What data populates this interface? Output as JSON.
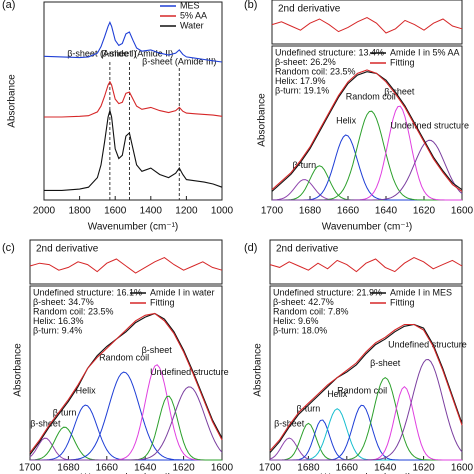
{
  "chart_data": [
    {
      "type": "line",
      "panel": "(a)",
      "xlabel": "Wavenumber (cm⁻¹)",
      "ylabel": "Absorbance",
      "xlim": [
        2000,
        1000
      ],
      "xticks": [
        2000,
        1800,
        1600,
        1400,
        1200,
        1000
      ],
      "ylim": [
        0,
        3.1
      ],
      "x": [
        2000,
        1900,
        1800,
        1750,
        1700,
        1680,
        1660,
        1640,
        1630,
        1620,
        1600,
        1580,
        1560,
        1540,
        1520,
        1500,
        1480,
        1450,
        1400,
        1350,
        1300,
        1260,
        1240,
        1220,
        1200,
        1150,
        1100,
        1050,
        1000
      ],
      "series": [
        {
          "name": "MES",
          "color": "#1f3fd6",
          "values": [
            2.25,
            2.24,
            2.23,
            2.24,
            2.3,
            2.4,
            2.55,
            2.72,
            2.78,
            2.72,
            2.5,
            2.42,
            2.45,
            2.6,
            2.63,
            2.5,
            2.38,
            2.33,
            2.35,
            2.3,
            2.27,
            2.3,
            2.35,
            2.28,
            2.24,
            2.22,
            2.2,
            2.18,
            2.16
          ]
        },
        {
          "name": "5% AA",
          "color": "#d62728",
          "values": [
            1.3,
            1.3,
            1.31,
            1.32,
            1.38,
            1.47,
            1.62,
            1.8,
            1.85,
            1.8,
            1.58,
            1.51,
            1.53,
            1.67,
            1.69,
            1.58,
            1.47,
            1.42,
            1.45,
            1.4,
            1.37,
            1.4,
            1.45,
            1.39,
            1.36,
            1.35,
            1.34,
            1.33,
            1.31
          ]
        },
        {
          "name": "Water",
          "color": "#111111",
          "values": [
            0.15,
            0.15,
            0.17,
            0.2,
            0.35,
            0.55,
            0.9,
            1.3,
            1.4,
            1.3,
            0.8,
            0.65,
            0.7,
            1.0,
            1.05,
            0.8,
            0.55,
            0.45,
            0.5,
            0.4,
            0.35,
            0.42,
            0.5,
            0.4,
            0.32,
            0.3,
            0.28,
            0.25,
            0.2
          ]
        }
      ],
      "annotations": [
        {
          "text": "β-sheet (Amide I)",
          "x": 1630
        },
        {
          "text": "β-sheet (Amide II)",
          "x": 1520
        },
        {
          "text": "β-sheet (Amide III)",
          "x": 1240
        }
      ]
    },
    {
      "type": "fit",
      "panel": "(b)",
      "xlabel": "Wavenumber (cm⁻¹)",
      "ylabel": "Absorbance",
      "xlim": [
        1700,
        1600
      ],
      "xticks": [
        1700,
        1680,
        1660,
        1640,
        1620,
        1600
      ],
      "ylim": [
        0,
        0.9
      ],
      "derivative": {
        "label": "2nd derivative",
        "color": "#d62728",
        "ylim": [
          -1,
          1
        ],
        "values": [
          0.1,
          0.3,
          0.0,
          -0.3,
          0.2,
          0.5,
          0.1,
          -0.4,
          -0.1,
          0.3,
          0.6,
          0.2,
          -0.5,
          -0.2,
          0.4,
          0.1,
          -0.3,
          0.2,
          0.5,
          0.0,
          -0.2
        ]
      },
      "composition": [
        "Undefined structure: 13.4%",
        "β-sheet: 26.2%",
        "Random coil: 23.5%",
        "Helix: 17.9%",
        "β-turn: 19.1%"
      ],
      "x": [
        1700,
        1695,
        1690,
        1685,
        1680,
        1675,
        1670,
        1665,
        1660,
        1655,
        1650,
        1645,
        1640,
        1635,
        1630,
        1625,
        1620,
        1615,
        1610,
        1605,
        1600
      ],
      "series": [
        {
          "name": "Amide I in 5% AA",
          "color": "#111111",
          "values": [
            0.05,
            0.1,
            0.15,
            0.22,
            0.3,
            0.4,
            0.5,
            0.6,
            0.68,
            0.73,
            0.75,
            0.74,
            0.7,
            0.63,
            0.55,
            0.45,
            0.35,
            0.25,
            0.17,
            0.1,
            0.06
          ]
        },
        {
          "name": "Fitting",
          "color": "#d62728",
          "values": [
            0.06,
            0.11,
            0.16,
            0.23,
            0.31,
            0.41,
            0.51,
            0.61,
            0.69,
            0.74,
            0.76,
            0.74,
            0.69,
            0.62,
            0.54,
            0.44,
            0.34,
            0.24,
            0.16,
            0.09,
            0.05
          ]
        }
      ],
      "peaks": [
        {
          "center": 1683,
          "height": 0.12,
          "width": 5,
          "color": "#8e44ad",
          "label": "β-turn"
        },
        {
          "center": 1675,
          "height": 0.2,
          "width": 5,
          "color": "#2ca02c"
        },
        {
          "center": 1661,
          "height": 0.38,
          "width": 6,
          "color": "#1f3fd6",
          "label": "Helix"
        },
        {
          "center": 1648,
          "height": 0.52,
          "width": 7,
          "color": "#2ca02c",
          "label": "Random coil"
        },
        {
          "center": 1633,
          "height": 0.55,
          "width": 6,
          "color": "#e040e0",
          "label": "β-sheet"
        },
        {
          "center": 1617,
          "height": 0.35,
          "width": 8,
          "color": "#7b3fa0",
          "label": "Undefined structure"
        }
      ]
    },
    {
      "type": "fit",
      "panel": "(c)",
      "xlabel": "Wavenumber (cm⁻¹)",
      "ylabel": "Absorbance",
      "xlim": [
        1700,
        1600
      ],
      "xticks": [
        1700,
        1680,
        1660,
        1640,
        1620,
        1600
      ],
      "ylim": [
        0,
        0.95
      ],
      "derivative": {
        "label": "2nd derivative",
        "color": "#d62728",
        "ylim": [
          -1,
          1
        ],
        "values": [
          0.0,
          0.2,
          0.1,
          -0.3,
          -0.1,
          0.3,
          0.1,
          -0.4,
          0.2,
          0.5,
          0.0,
          -0.5,
          -0.1,
          0.3,
          0.6,
          0.1,
          -0.3,
          0.0,
          0.3,
          -0.1,
          -0.3
        ]
      },
      "composition": [
        "Undefined structure: 16.1%",
        "β-sheet: 34.7%",
        "Random coil: 23.5%",
        "Helix: 16.3%",
        "β-turn: 9.4%"
      ],
      "x": [
        1700,
        1695,
        1690,
        1685,
        1680,
        1675,
        1670,
        1665,
        1660,
        1655,
        1650,
        1645,
        1640,
        1635,
        1630,
        1625,
        1620,
        1615,
        1610,
        1605,
        1600
      ],
      "series": [
        {
          "name": "Amide I in water",
          "color": "#111111",
          "values": [
            0.03,
            0.1,
            0.18,
            0.25,
            0.32,
            0.4,
            0.5,
            0.57,
            0.62,
            0.66,
            0.7,
            0.75,
            0.78,
            0.8,
            0.77,
            0.7,
            0.6,
            0.48,
            0.35,
            0.22,
            0.12
          ]
        },
        {
          "name": "Fitting",
          "color": "#d62728",
          "values": [
            0.04,
            0.11,
            0.19,
            0.26,
            0.33,
            0.41,
            0.5,
            0.56,
            0.61,
            0.66,
            0.71,
            0.76,
            0.79,
            0.8,
            0.76,
            0.69,
            0.59,
            0.47,
            0.34,
            0.21,
            0.11
          ]
        }
      ],
      "peaks": [
        {
          "center": 1692,
          "height": 0.12,
          "width": 4,
          "color": "#8e44ad",
          "label": "β-sheet"
        },
        {
          "center": 1682,
          "height": 0.18,
          "width": 5,
          "color": "#2ca02c",
          "label": "β-turn"
        },
        {
          "center": 1671,
          "height": 0.3,
          "width": 6,
          "color": "#1f3fd6",
          "label": "Helix"
        },
        {
          "center": 1651,
          "height": 0.48,
          "width": 8,
          "color": "#1f3fd6",
          "label": "Random coil"
        },
        {
          "center": 1634,
          "height": 0.52,
          "width": 6,
          "color": "#e040e0",
          "label": "β-sheet"
        },
        {
          "center": 1628,
          "height": 0.35,
          "width": 5,
          "color": "#2ca02c"
        },
        {
          "center": 1617,
          "height": 0.4,
          "width": 8,
          "color": "#7b3fa0",
          "label": "Undefined structure"
        }
      ]
    },
    {
      "type": "fit",
      "panel": "(d)",
      "xlabel": "Wavenumber (cm⁻¹)",
      "ylabel": "Absorbance",
      "xlim": [
        1700,
        1600
      ],
      "xticks": [
        1700,
        1680,
        1660,
        1640,
        1620,
        1600
      ],
      "ylim": [
        0,
        0.95
      ],
      "derivative": {
        "label": "2nd derivative",
        "color": "#d62728",
        "ylim": [
          -1,
          1
        ],
        "values": [
          0.1,
          -0.1,
          0.3,
          0.0,
          -0.3,
          0.2,
          -0.2,
          0.4,
          0.1,
          -0.4,
          0.2,
          0.5,
          -0.1,
          -0.4,
          0.2,
          0.6,
          0.3,
          -0.2,
          0.1,
          0.4,
          0.0
        ]
      },
      "composition": [
        "Undefined structure: 21.9%",
        "β-sheet: 42.7%",
        "Random coil: 7.8%",
        "Helix: 9.6%",
        "β-turn: 18.0%"
      ],
      "x": [
        1700,
        1695,
        1690,
        1685,
        1680,
        1675,
        1670,
        1665,
        1660,
        1655,
        1650,
        1645,
        1640,
        1635,
        1630,
        1625,
        1620,
        1615,
        1610,
        1605,
        1600
      ],
      "series": [
        {
          "name": "Amide I in MES",
          "color": "#111111",
          "values": [
            0.04,
            0.1,
            0.18,
            0.25,
            0.3,
            0.35,
            0.4,
            0.45,
            0.48,
            0.52,
            0.58,
            0.63,
            0.66,
            0.7,
            0.73,
            0.74,
            0.72,
            0.63,
            0.5,
            0.35,
            0.2
          ]
        },
        {
          "name": "Fitting",
          "color": "#d62728",
          "values": [
            0.05,
            0.11,
            0.19,
            0.26,
            0.31,
            0.36,
            0.41,
            0.45,
            0.49,
            0.53,
            0.59,
            0.64,
            0.67,
            0.71,
            0.74,
            0.74,
            0.71,
            0.62,
            0.49,
            0.34,
            0.19
          ]
        }
      ],
      "peaks": [
        {
          "center": 1690,
          "height": 0.12,
          "width": 4,
          "color": "#8e44ad",
          "label": "β-sheet"
        },
        {
          "center": 1680,
          "height": 0.2,
          "width": 4,
          "color": "#2ca02c",
          "label": "β-turn"
        },
        {
          "center": 1673,
          "height": 0.22,
          "width": 4,
          "color": "#1f3fd6"
        },
        {
          "center": 1665,
          "height": 0.28,
          "width": 5,
          "color": "#17becf",
          "label": "Helix"
        },
        {
          "center": 1652,
          "height": 0.3,
          "width": 5,
          "color": "#1f3fd6",
          "label": "Random coil"
        },
        {
          "center": 1640,
          "height": 0.45,
          "width": 6,
          "color": "#2ca02c",
          "label": "β-sheet"
        },
        {
          "center": 1630,
          "height": 0.4,
          "width": 5,
          "color": "#e040e0"
        },
        {
          "center": 1618,
          "height": 0.55,
          "width": 8,
          "color": "#7b3fa0",
          "label": "Undefined structure"
        }
      ]
    }
  ]
}
